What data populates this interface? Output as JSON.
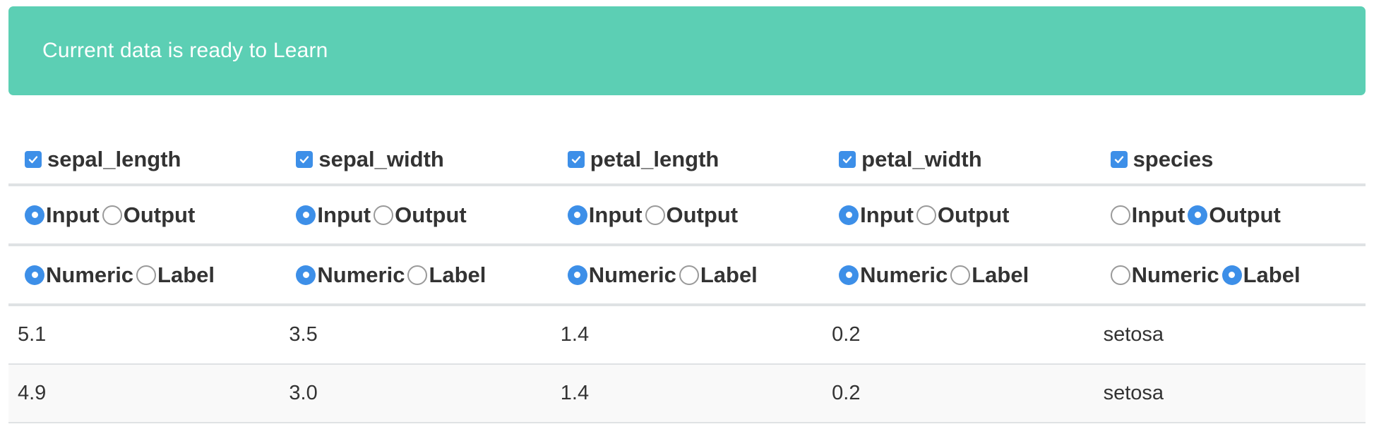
{
  "status": {
    "message": "Current data is ready to Learn",
    "color": "#5ccfb4"
  },
  "accent_color": "#3d8fe8",
  "columns": [
    {
      "name": "sepal_length",
      "included": true,
      "role": {
        "input_label": "Input",
        "output_label": "Output",
        "selected": "Input"
      },
      "kind": {
        "numeric_label": "Numeric",
        "label_label": "Label",
        "selected": "Numeric"
      }
    },
    {
      "name": "sepal_width",
      "included": true,
      "role": {
        "input_label": "Input",
        "output_label": "Output",
        "selected": "Input"
      },
      "kind": {
        "numeric_label": "Numeric",
        "label_label": "Label",
        "selected": "Numeric"
      }
    },
    {
      "name": "petal_length",
      "included": true,
      "role": {
        "input_label": "Input",
        "output_label": "Output",
        "selected": "Input"
      },
      "kind": {
        "numeric_label": "Numeric",
        "label_label": "Label",
        "selected": "Numeric"
      }
    },
    {
      "name": "petal_width",
      "included": true,
      "role": {
        "input_label": "Input",
        "output_label": "Output",
        "selected": "Input"
      },
      "kind": {
        "numeric_label": "Numeric",
        "label_label": "Label",
        "selected": "Numeric"
      }
    },
    {
      "name": "species",
      "included": true,
      "role": {
        "input_label": "Input",
        "output_label": "Output",
        "selected": "Output"
      },
      "kind": {
        "numeric_label": "Numeric",
        "label_label": "Label",
        "selected": "Label"
      }
    }
  ],
  "rows": [
    [
      "5.1",
      "3.5",
      "1.4",
      "0.2",
      "setosa"
    ],
    [
      "4.9",
      "3.0",
      "1.4",
      "0.2",
      "setosa"
    ]
  ]
}
